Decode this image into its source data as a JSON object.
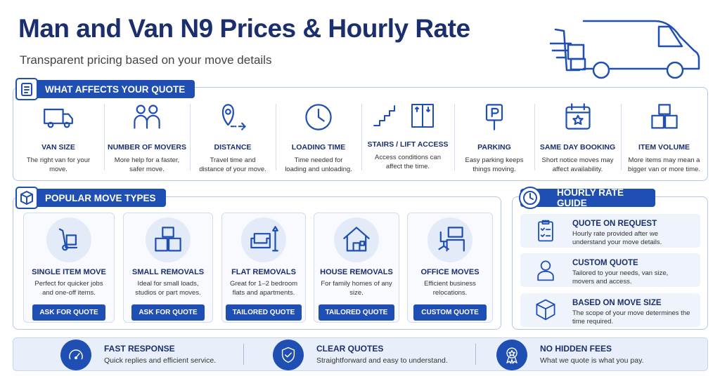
{
  "header": {
    "title": "Man and Van N9 Prices & Hourly Rate",
    "subtitle": "Transparent pricing based on your move details"
  },
  "factors": {
    "title": "WHAT AFFECTS YOUR QUOTE",
    "items": [
      {
        "title": "VAN SIZE",
        "desc": "The right van for your move."
      },
      {
        "title": "NUMBER OF MOVERS",
        "desc": "More help for a faster, safer move."
      },
      {
        "title": "DISTANCE",
        "desc": "Travel time and distance of your move."
      },
      {
        "title": "LOADING TIME",
        "desc": "Time needed for loading and unloading."
      },
      {
        "title": "STAIRS / LIFT ACCESS",
        "desc": "Access conditions can affect the time."
      },
      {
        "title": "PARKING",
        "desc": "Easy parking keeps things moving."
      },
      {
        "title": "SAME DAY BOOKING",
        "desc": "Short notice moves may affect availability."
      },
      {
        "title": "ITEM VOLUME",
        "desc": "More items may mean a bigger van or more time."
      }
    ]
  },
  "move_types": {
    "title": "POPULAR MOVE TYPES",
    "items": [
      {
        "title": "SINGLE ITEM MOVE",
        "desc": "Perfect for quicker jobs and one-off items.",
        "button": "ASK FOR QUOTE"
      },
      {
        "title": "SMALL REMOVALS",
        "desc": "Ideal for small loads, studios or part moves.",
        "button": "ASK FOR QUOTE"
      },
      {
        "title": "FLAT REMOVALS",
        "desc": "Great for 1–2 bedroom flats and apartments.",
        "button": "TAILORED QUOTE"
      },
      {
        "title": "HOUSE REMOVALS",
        "desc": "For family homes of any size.",
        "button": "TAILORED QUOTE"
      },
      {
        "title": "OFFICE MOVES",
        "desc": "Efficient business relocations.",
        "button": "CUSTOM QUOTE"
      }
    ]
  },
  "rate_guide": {
    "title": "HOURLY RATE GUIDE",
    "items": [
      {
        "title": "QUOTE ON REQUEST",
        "desc": "Hourly rate provided after we understand your move details."
      },
      {
        "title": "CUSTOM QUOTE",
        "desc": "Tailored to your needs, van size, movers and access."
      },
      {
        "title": "BASED ON MOVE SIZE",
        "desc": "The scope of your move determines the time required."
      }
    ]
  },
  "footer": {
    "items": [
      {
        "title": "FAST RESPONSE",
        "desc": "Quick replies and efficient service."
      },
      {
        "title": "CLEAR QUOTES",
        "desc": "Straightforward and easy to understand."
      },
      {
        "title": "NO HIDDEN FEES",
        "desc": "What we quote is what you pay."
      }
    ]
  }
}
